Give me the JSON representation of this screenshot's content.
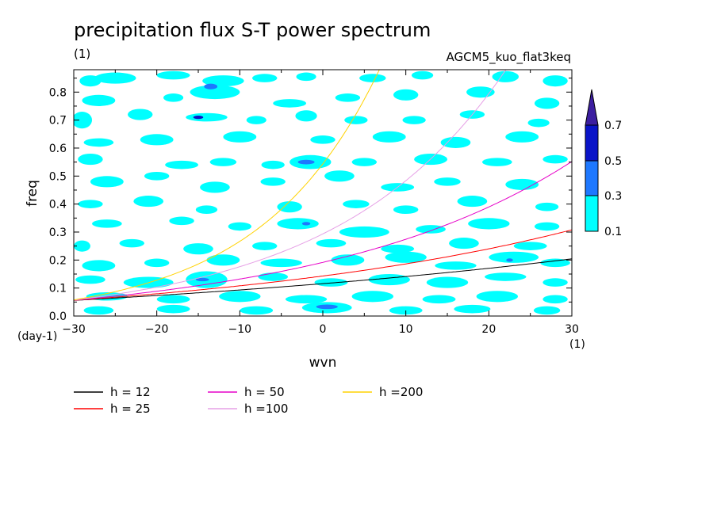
{
  "chart_data": {
    "type": "heatmap",
    "title": "precipitation flux S-T power spectrum",
    "subtitle_left": "(1)",
    "subtitle_right": "AGCM5_kuo_flat3keq",
    "xlabel": "wvn",
    "ylabel": "freq",
    "x_unit": "(1)",
    "y_unit": "(day-1)",
    "xlim": [
      -30,
      30
    ],
    "ylim": [
      0,
      0.88
    ],
    "xticks": [
      -30,
      -20,
      -10,
      0,
      10,
      20,
      30
    ],
    "yticks": [
      0.0,
      0.1,
      0.2,
      0.3,
      0.4,
      0.5,
      0.6,
      0.7,
      0.8
    ],
    "ytick_labels": [
      "0.0",
      "0.1",
      "0.2",
      "0.3",
      "0.4",
      "0.5",
      "0.6",
      "0.7",
      "0.8"
    ],
    "colorbar": {
      "levels": [
        "0.1",
        "0.3",
        "0.5",
        "0.7"
      ],
      "colors": [
        "#00ffff",
        "#1e78ff",
        "#0a14c8",
        "#3c1ea0"
      ]
    },
    "contour_colors": {
      "level1": "#00ffff",
      "level2": "#1e78ff",
      "level3": "#0a14c8"
    },
    "contour_patches": [
      [
        -28,
        0.84,
        1.3,
        0.02,
        1
      ],
      [
        -25,
        0.85,
        2.5,
        0.02,
        1
      ],
      [
        -18,
        0.86,
        2,
        0.015,
        1
      ],
      [
        -12,
        0.84,
        2.5,
        0.02,
        1
      ],
      [
        -7,
        0.85,
        1.5,
        0.015,
        1
      ],
      [
        -2,
        0.855,
        1.2,
        0.015,
        1
      ],
      [
        6,
        0.85,
        1.6,
        0.015,
        1
      ],
      [
        12,
        0.86,
        1.3,
        0.015,
        1
      ],
      [
        22,
        0.855,
        1.6,
        0.02,
        1
      ],
      [
        28,
        0.84,
        1.5,
        0.02,
        1
      ],
      [
        -27,
        0.77,
        2,
        0.02,
        1
      ],
      [
        -18,
        0.78,
        1.2,
        0.015,
        1
      ],
      [
        -13,
        0.8,
        3,
        0.025,
        1
      ],
      [
        -4,
        0.76,
        2,
        0.015,
        1
      ],
      [
        3,
        0.78,
        1.5,
        0.015,
        1
      ],
      [
        10,
        0.79,
        1.5,
        0.02,
        1
      ],
      [
        19,
        0.8,
        1.7,
        0.02,
        1
      ],
      [
        27,
        0.76,
        1.5,
        0.02,
        1
      ],
      [
        -29,
        0.7,
        1.2,
        0.03,
        1
      ],
      [
        -22,
        0.72,
        1.5,
        0.02,
        1
      ],
      [
        -14,
        0.71,
        2.5,
        0.015,
        1
      ],
      [
        -8,
        0.7,
        1.2,
        0.015,
        1
      ],
      [
        -2,
        0.715,
        1.3,
        0.02,
        1
      ],
      [
        4,
        0.7,
        1.4,
        0.015,
        1
      ],
      [
        11,
        0.7,
        1.4,
        0.015,
        1
      ],
      [
        18,
        0.72,
        1.5,
        0.015,
        1
      ],
      [
        26,
        0.69,
        1.3,
        0.015,
        1
      ],
      [
        -27,
        0.62,
        1.8,
        0.015,
        1
      ],
      [
        -20,
        0.63,
        2,
        0.02,
        1
      ],
      [
        -10,
        0.64,
        2,
        0.02,
        1
      ],
      [
        0,
        0.63,
        1.5,
        0.015,
        1
      ],
      [
        8,
        0.64,
        2,
        0.02,
        1
      ],
      [
        16,
        0.62,
        1.8,
        0.02,
        1
      ],
      [
        24,
        0.64,
        2,
        0.02,
        1
      ],
      [
        -28,
        0.56,
        1.5,
        0.02,
        1
      ],
      [
        -17,
        0.54,
        2,
        0.015,
        1
      ],
      [
        -12,
        0.55,
        1.6,
        0.015,
        1
      ],
      [
        -6,
        0.54,
        1.4,
        0.015,
        1
      ],
      [
        -1.5,
        0.55,
        2.5,
        0.025,
        1
      ],
      [
        5,
        0.55,
        1.5,
        0.015,
        1
      ],
      [
        13,
        0.56,
        2,
        0.02,
        1
      ],
      [
        21,
        0.55,
        1.8,
        0.015,
        1
      ],
      [
        28,
        0.56,
        1.5,
        0.015,
        1
      ],
      [
        -26,
        0.48,
        2,
        0.02,
        1
      ],
      [
        -20,
        0.5,
        1.5,
        0.015,
        1
      ],
      [
        -13,
        0.46,
        1.8,
        0.02,
        1
      ],
      [
        -6,
        0.48,
        1.5,
        0.015,
        1
      ],
      [
        2,
        0.5,
        1.8,
        0.02,
        1
      ],
      [
        9,
        0.46,
        2,
        0.015,
        1
      ],
      [
        15,
        0.48,
        1.6,
        0.015,
        1
      ],
      [
        24,
        0.47,
        2,
        0.02,
        1
      ],
      [
        -28,
        0.4,
        1.5,
        0.015,
        1
      ],
      [
        -21,
        0.41,
        1.8,
        0.02,
        1
      ],
      [
        -14,
        0.38,
        1.3,
        0.015,
        1
      ],
      [
        -4,
        0.39,
        1.5,
        0.02,
        1
      ],
      [
        4,
        0.4,
        1.6,
        0.015,
        1
      ],
      [
        10,
        0.38,
        1.5,
        0.015,
        1
      ],
      [
        18,
        0.41,
        1.8,
        0.02,
        1
      ],
      [
        27,
        0.39,
        1.4,
        0.015,
        1
      ],
      [
        -26,
        0.33,
        1.8,
        0.015,
        1
      ],
      [
        -17,
        0.34,
        1.5,
        0.015,
        1
      ],
      [
        -10,
        0.32,
        1.4,
        0.015,
        1
      ],
      [
        -3,
        0.33,
        2.5,
        0.02,
        1
      ],
      [
        5,
        0.3,
        3,
        0.02,
        1
      ],
      [
        13,
        0.31,
        1.8,
        0.015,
        1
      ],
      [
        20,
        0.33,
        2.5,
        0.02,
        1
      ],
      [
        27,
        0.32,
        1.5,
        0.015,
        1
      ],
      [
        -29,
        0.25,
        1,
        0.02,
        1
      ],
      [
        -23,
        0.26,
        1.5,
        0.015,
        1
      ],
      [
        -15,
        0.24,
        1.8,
        0.02,
        1
      ],
      [
        -7,
        0.25,
        1.5,
        0.015,
        1
      ],
      [
        1,
        0.26,
        1.8,
        0.015,
        1
      ],
      [
        9,
        0.24,
        2,
        0.015,
        1
      ],
      [
        17,
        0.26,
        1.8,
        0.02,
        1
      ],
      [
        25,
        0.25,
        2,
        0.015,
        1
      ],
      [
        -27,
        0.18,
        2,
        0.02,
        1
      ],
      [
        -20,
        0.19,
        1.5,
        0.015,
        1
      ],
      [
        -12,
        0.2,
        2,
        0.02,
        1
      ],
      [
        -5,
        0.19,
        2.5,
        0.015,
        1
      ],
      [
        3,
        0.2,
        2,
        0.02,
        1
      ],
      [
        10,
        0.21,
        2.5,
        0.02,
        1
      ],
      [
        16,
        0.18,
        2.5,
        0.015,
        1
      ],
      [
        23,
        0.21,
        3,
        0.02,
        1
      ],
      [
        28,
        0.19,
        1.8,
        0.015,
        1
      ],
      [
        -28,
        0.13,
        1.8,
        0.015,
        1
      ],
      [
        -21,
        0.12,
        3,
        0.02,
        1
      ],
      [
        -14,
        0.13,
        2.5,
        0.03,
        1
      ],
      [
        -6,
        0.14,
        1.8,
        0.015,
        1
      ],
      [
        1,
        0.12,
        2,
        0.015,
        1
      ],
      [
        8,
        0.13,
        2.5,
        0.02,
        1
      ],
      [
        15,
        0.12,
        2.5,
        0.02,
        1
      ],
      [
        22,
        0.14,
        2.5,
        0.015,
        1
      ],
      [
        28,
        0.12,
        1.5,
        0.015,
        1
      ],
      [
        -26,
        0.07,
        2.5,
        0.015,
        1
      ],
      [
        -18,
        0.06,
        2,
        0.015,
        1
      ],
      [
        -10,
        0.07,
        2.5,
        0.02,
        1
      ],
      [
        -2,
        0.06,
        2.5,
        0.015,
        1
      ],
      [
        6,
        0.07,
        2.5,
        0.02,
        1
      ],
      [
        14,
        0.06,
        2,
        0.015,
        1
      ],
      [
        21,
        0.07,
        2.5,
        0.02,
        1
      ],
      [
        28,
        0.06,
        1.5,
        0.015,
        1
      ],
      [
        -27,
        0.02,
        1.8,
        0.015,
        1
      ],
      [
        -18,
        0.025,
        2,
        0.015,
        1
      ],
      [
        -8,
        0.02,
        2,
        0.015,
        1
      ],
      [
        0.5,
        0.03,
        3,
        0.02,
        1
      ],
      [
        10,
        0.02,
        2,
        0.015,
        1
      ],
      [
        18,
        0.025,
        2.2,
        0.015,
        1
      ],
      [
        27,
        0.02,
        1.6,
        0.015,
        1
      ],
      [
        -13.5,
        0.82,
        0.8,
        0.01,
        2
      ],
      [
        -15,
        0.71,
        0.6,
        0.006,
        3
      ],
      [
        -2,
        0.55,
        1,
        0.008,
        2
      ],
      [
        0.5,
        0.033,
        1.3,
        0.008,
        2
      ],
      [
        22.5,
        0.2,
        0.4,
        0.006,
        2
      ],
      [
        -14.5,
        0.13,
        0.8,
        0.006,
        2
      ],
      [
        -2,
        0.33,
        0.5,
        0.006,
        2
      ]
    ],
    "series": [
      {
        "name": "h = 12",
        "color": "#000000",
        "h": 12
      },
      {
        "name": "h = 25",
        "color": "#ff0000",
        "h": 25
      },
      {
        "name": "h = 50",
        "color": "#e600c8",
        "h": 50
      },
      {
        "name": "h =100",
        "color": "#e6a0e6",
        "h": 100
      },
      {
        "name": "h =200",
        "color": "#ffd200",
        "h": 200
      }
    ]
  }
}
